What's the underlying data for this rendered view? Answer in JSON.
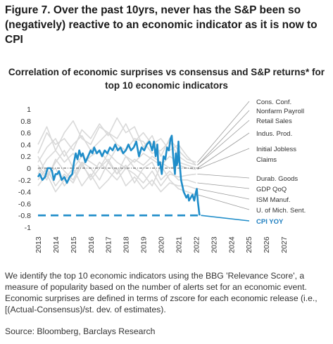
{
  "figure": {
    "title": "Figure 7. Over the past 10yrs, never has the S&P been so (negatively) reactive to an economic indicator as it is now to CPI",
    "description": "We identify the top 10 economic indicators using the BBG 'Relevance Score', a measure of popularity based on the number of alerts set for an economic event. Economic surprises are defined in terms of zscore for each economic release (i.e., [(Actual-Consensus)/st. dev. of estimates).",
    "source": "Source: Bloomberg, Barclays Research"
  },
  "chart_data": {
    "type": "line",
    "title": "Correlation of economic surprises vs consensus and S&P returns* for top 10 economic indicators",
    "xlabel": "",
    "ylabel": "",
    "xlim": [
      2013,
      2028
    ],
    "ylim": [
      -1,
      1
    ],
    "yticks": [
      "1",
      "0.8",
      "0.6",
      "0.4",
      "0.2",
      "0",
      "-0.2",
      "-0.4",
      "-0.6",
      "-0.8",
      "-1"
    ],
    "xticks": [
      "2013",
      "2014",
      "2015",
      "2016",
      "2017",
      "2018",
      "2019",
      "2020",
      "2021",
      "2022",
      "2023",
      "2024",
      "2025",
      "2026",
      "2027"
    ],
    "grid": false,
    "colors": {
      "highlight": "#1f8dc9",
      "others": "#d9d9d9",
      "zero_line": "#555555",
      "label_text": "#333333",
      "highlight_label": "#1f7fc0"
    },
    "series": [
      {
        "name": "CPI YOY",
        "highlight": true,
        "x": [
          2013.0,
          2013.1,
          2013.25,
          2013.4,
          2013.55,
          2013.7,
          2013.8,
          2013.9,
          2014.0,
          2014.1,
          2014.2,
          2014.35,
          2014.5,
          2014.65,
          2014.8,
          2014.95,
          2015.05,
          2015.15,
          2015.25,
          2015.35,
          2015.45,
          2015.55,
          2015.7,
          2015.85,
          2016.0,
          2016.1,
          2016.2,
          2016.35,
          2016.5,
          2016.65,
          2016.8,
          2016.95,
          2017.1,
          2017.25,
          2017.4,
          2017.55,
          2017.7,
          2017.85,
          2018.0,
          2018.15,
          2018.3,
          2018.45,
          2018.6,
          2018.75,
          2018.9,
          2019.05,
          2019.2,
          2019.35,
          2019.5,
          2019.6,
          2019.7,
          2019.8,
          2019.85,
          2019.95,
          2020.05,
          2020.15,
          2020.25,
          2020.35,
          2020.45,
          2020.55,
          2020.62,
          2020.7,
          2020.75,
          2020.8,
          2020.85,
          2020.9,
          2020.95,
          2021.0,
          2021.05,
          2021.15,
          2021.3,
          2021.45,
          2021.55,
          2021.6,
          2021.7,
          2021.8,
          2021.9,
          2022.0,
          2022.05,
          2022.1,
          2022.2
        ],
        "y": [
          -0.15,
          -0.1,
          -0.2,
          -0.15,
          0.0,
          0.0,
          -0.05,
          -0.2,
          -0.1,
          -0.1,
          -0.05,
          -0.2,
          -0.15,
          -0.25,
          -0.15,
          -0.1,
          0.1,
          0.25,
          0.15,
          0.3,
          0.2,
          0.25,
          0.1,
          0.2,
          0.3,
          0.25,
          0.35,
          0.25,
          0.3,
          0.2,
          0.3,
          0.25,
          0.35,
          0.3,
          0.4,
          0.3,
          0.35,
          0.25,
          0.3,
          0.4,
          0.3,
          0.35,
          0.45,
          0.2,
          0.35,
          0.3,
          0.4,
          0.45,
          0.3,
          0.45,
          0.2,
          0.4,
          0.05,
          0.1,
          -0.1,
          0.2,
          0.15,
          0.35,
          0.3,
          0.5,
          0.55,
          0.2,
          0.05,
          -0.1,
          0.25,
          0.05,
          0.1,
          0.45,
          0.15,
          -0.2,
          -0.4,
          -0.5,
          -0.45,
          -0.55,
          -0.5,
          -0.45,
          -0.55,
          -0.4,
          -0.35,
          -0.55,
          -0.8
        ]
      },
      {
        "name": "Cons. Conf.",
        "x": [
          2013,
          2013.5,
          2014,
          2014.5,
          2015,
          2015.5,
          2016,
          2016.5,
          2017,
          2017.5,
          2018,
          2018.5,
          2019,
          2019.5,
          2020,
          2020.5,
          2021,
          2021.5,
          2022
        ],
        "y": [
          0.25,
          0.6,
          0.4,
          0.5,
          0.3,
          0.65,
          0.5,
          0.75,
          0.55,
          0.85,
          0.6,
          0.7,
          0.35,
          0.55,
          0.2,
          0.5,
          0.3,
          0.15,
          0.1
        ]
      },
      {
        "name": "Nonfarm Payroll",
        "x": [
          2013,
          2013.5,
          2014,
          2014.5,
          2015,
          2015.5,
          2016,
          2016.5,
          2017,
          2017.5,
          2018,
          2018.5,
          2019,
          2019.5,
          2020,
          2020.5,
          2021,
          2021.5,
          2022
        ],
        "y": [
          0.4,
          0.7,
          0.3,
          0.6,
          0.8,
          0.5,
          0.4,
          0.7,
          0.6,
          0.5,
          0.75,
          0.45,
          0.6,
          0.4,
          0.5,
          0.3,
          0.4,
          0.2,
          0.05
        ]
      },
      {
        "name": "Retail Sales",
        "x": [
          2013,
          2013.5,
          2014,
          2014.5,
          2015,
          2015.5,
          2016,
          2016.5,
          2017,
          2017.5,
          2018,
          2018.5,
          2019,
          2019.5,
          2020,
          2020.5,
          2021,
          2021.5,
          2022
        ],
        "y": [
          0.1,
          0.35,
          0.5,
          0.2,
          0.4,
          0.55,
          0.3,
          0.45,
          0.6,
          0.4,
          0.3,
          0.5,
          0.45,
          0.25,
          0.3,
          0.45,
          0.2,
          0.1,
          0.05
        ]
      },
      {
        "name": "Indus. Prod.",
        "x": [
          2013,
          2013.5,
          2014,
          2014.5,
          2015,
          2015.5,
          2016,
          2016.5,
          2017,
          2017.5,
          2018,
          2018.5,
          2019,
          2019.5,
          2020,
          2020.5,
          2021,
          2021.5,
          2022
        ],
        "y": [
          -0.1,
          0.15,
          0.3,
          0.1,
          0.25,
          0.05,
          0.2,
          0.3,
          0.1,
          0.35,
          0.2,
          0.1,
          0.25,
          0.15,
          0.05,
          0.2,
          0.1,
          0.05,
          0.0
        ]
      },
      {
        "name": "Initial Jobless Claims",
        "x": [
          2013,
          2013.5,
          2014,
          2014.5,
          2015,
          2015.5,
          2016,
          2016.5,
          2017,
          2017.5,
          2018,
          2018.5,
          2019,
          2019.5,
          2020,
          2020.5,
          2021,
          2021.5,
          2022
        ],
        "y": [
          0.05,
          -0.15,
          0.1,
          0.3,
          0.0,
          0.2,
          0.1,
          0.0,
          0.25,
          0.1,
          0.0,
          0.15,
          0.05,
          0.2,
          0.1,
          0.0,
          0.05,
          0.0,
          -0.02
        ]
      },
      {
        "name": "Durab. Goods",
        "x": [
          2013,
          2013.5,
          2014,
          2014.5,
          2015,
          2015.5,
          2016,
          2016.5,
          2017,
          2017.5,
          2018,
          2018.5,
          2019,
          2019.5,
          2020,
          2020.5,
          2021,
          2021.5,
          2022
        ],
        "y": [
          -0.2,
          0.0,
          -0.3,
          -0.1,
          -0.25,
          0.05,
          -0.15,
          0.1,
          -0.05,
          -0.2,
          0.0,
          -0.1,
          -0.25,
          -0.05,
          -0.3,
          -0.1,
          -0.15,
          -0.12,
          -0.1
        ]
      },
      {
        "name": "GDP QoQ",
        "x": [
          2013,
          2013.5,
          2014,
          2014.5,
          2015,
          2015.5,
          2016,
          2016.5,
          2017,
          2017.5,
          2018,
          2018.5,
          2019,
          2019.5,
          2020,
          2020.5,
          2021,
          2021.5,
          2022
        ],
        "y": [
          0.2,
          -0.1,
          0.0,
          -0.3,
          -0.1,
          0.1,
          -0.2,
          0.0,
          0.15,
          -0.1,
          0.05,
          -0.25,
          0.0,
          0.1,
          -0.2,
          -0.05,
          -0.2,
          -0.2,
          -0.25
        ]
      },
      {
        "name": "ISM Manuf.",
        "x": [
          2013,
          2013.5,
          2014,
          2014.5,
          2015,
          2015.5,
          2016,
          2016.5,
          2017,
          2017.5,
          2018,
          2018.5,
          2019,
          2019.5,
          2020,
          2020.5,
          2021,
          2021.5,
          2022
        ],
        "y": [
          -0.3,
          -0.1,
          -0.4,
          -0.2,
          0.0,
          -0.3,
          -0.1,
          -0.35,
          -0.2,
          0.0,
          -0.3,
          -0.15,
          -0.35,
          -0.2,
          -0.4,
          -0.25,
          -0.3,
          -0.3,
          -0.35
        ]
      },
      {
        "name": "U. of Mich. Sent.",
        "x": [
          2013,
          2013.5,
          2014,
          2014.5,
          2015,
          2015.5,
          2016,
          2016.5,
          2017,
          2017.5,
          2018,
          2018.5,
          2019,
          2019.5,
          2020,
          2020.5,
          2021,
          2021.5,
          2022
        ],
        "y": [
          0.0,
          -0.2,
          0.15,
          -0.05,
          -0.2,
          0.1,
          0.0,
          -0.2,
          0.1,
          -0.1,
          0.2,
          0.0,
          -0.1,
          -0.3,
          0.05,
          -0.2,
          -0.35,
          -0.4,
          -0.45
        ]
      }
    ],
    "reference_line": {
      "series": "CPI YOY",
      "y": -0.8,
      "style": "dashed"
    }
  }
}
